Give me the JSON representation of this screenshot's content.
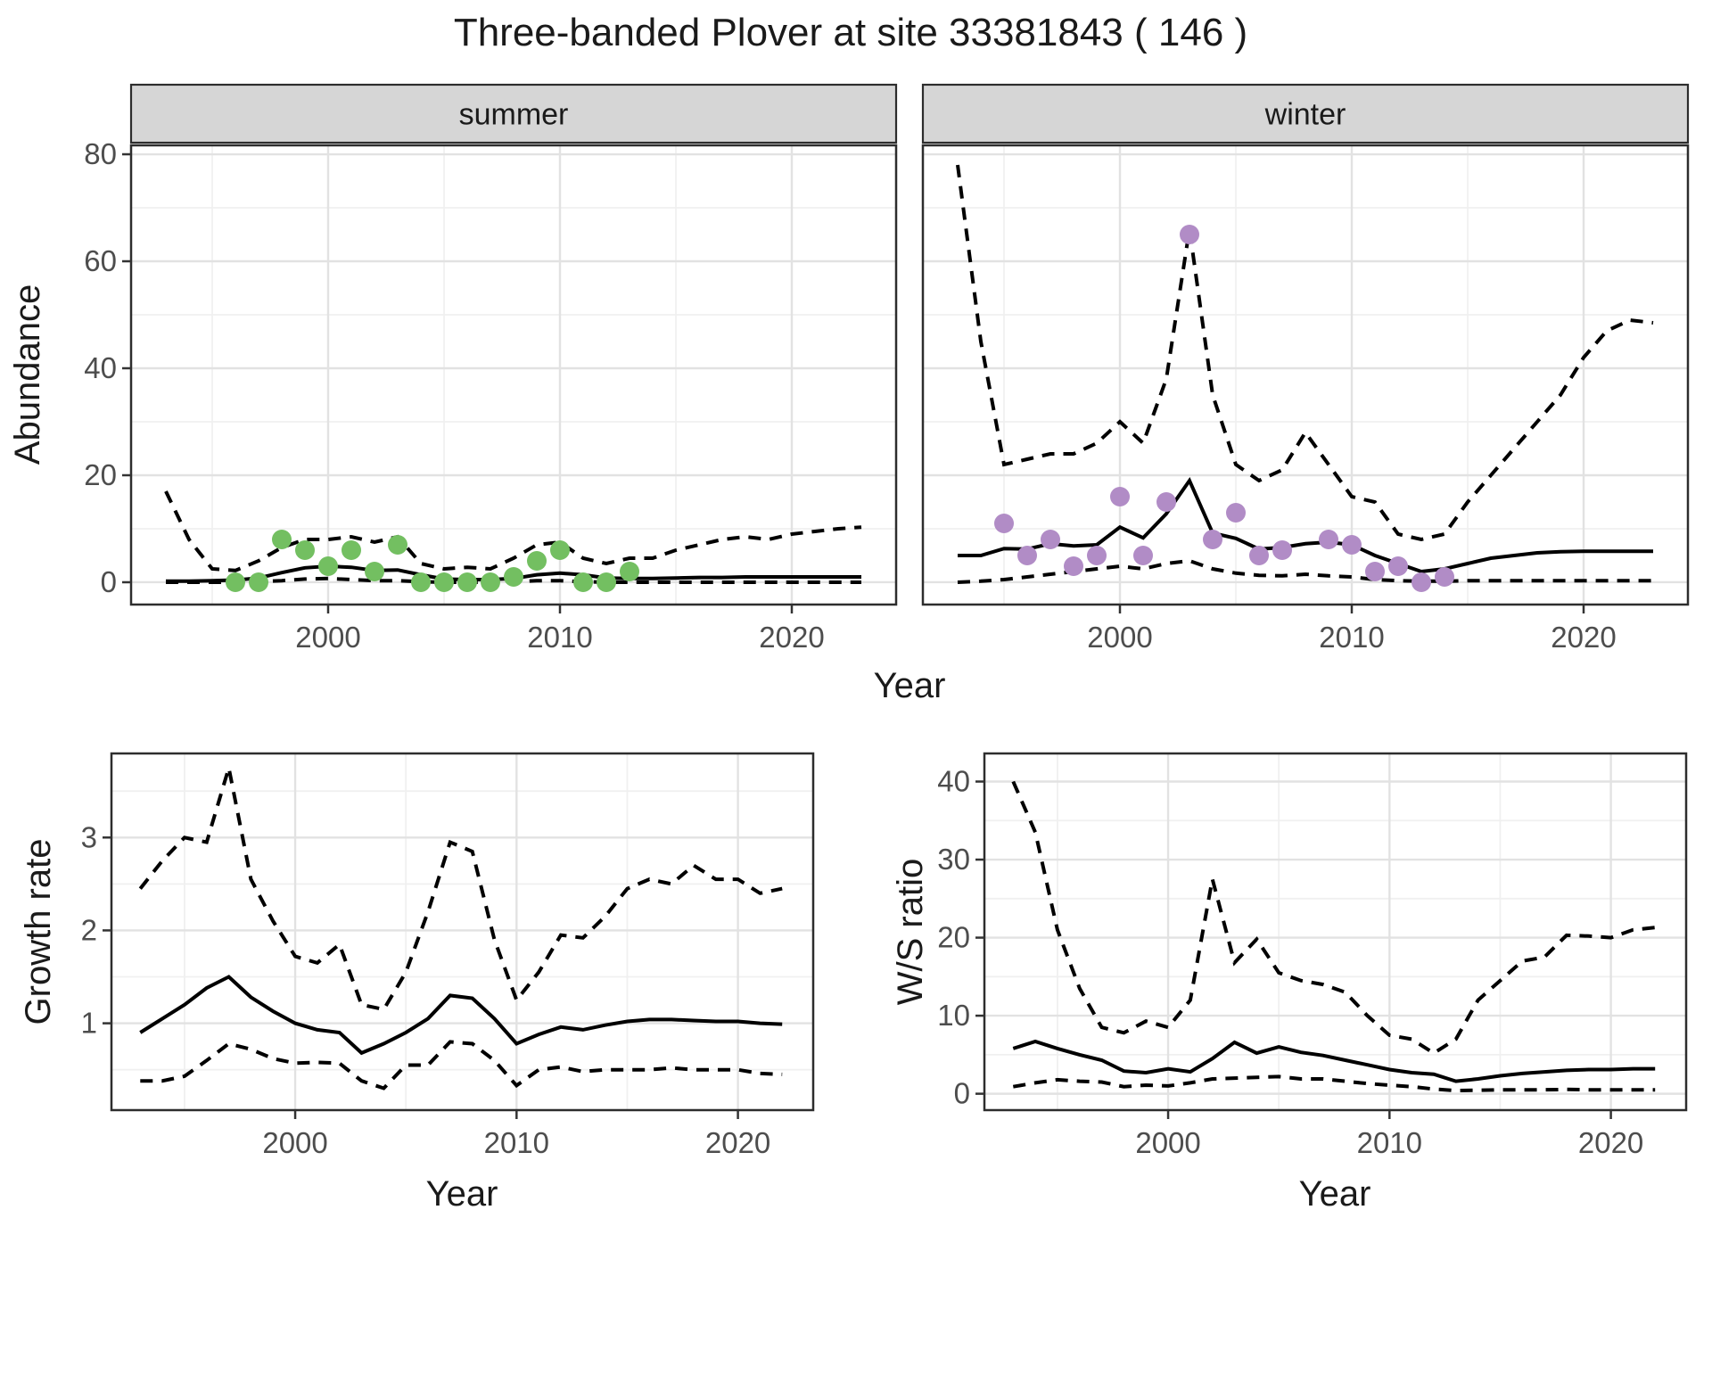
{
  "title": "Three-banded Plover at site 33381843 ( 146 )",
  "chart_data": [
    {
      "id": "abundance",
      "type": "line",
      "title": "",
      "xlabel": "Year",
      "ylabel": "Abundance",
      "facets": [
        "summer",
        "winter"
      ],
      "legend": "none",
      "grid": "on",
      "line_styles": {
        "median": "solid",
        "upper": "dashed",
        "lower": "dashed"
      },
      "x": [
        1993,
        1994,
        1995,
        1996,
        1997,
        1998,
        1999,
        2000,
        2001,
        2002,
        2003,
        2004,
        2005,
        2006,
        2007,
        2008,
        2009,
        2010,
        2011,
        2012,
        2013,
        2014,
        2015,
        2016,
        2017,
        2018,
        2019,
        2020,
        2021,
        2022,
        2023
      ],
      "xticks": [
        2000,
        2010,
        2020
      ],
      "xminor": [
        1995,
        2005,
        2015
      ],
      "xlim": [
        1991.5,
        2024.5
      ],
      "yticks": [
        0,
        20,
        40,
        60,
        80
      ],
      "yminor": [
        10,
        30,
        50,
        70
      ],
      "ylim": [
        -4.17,
        81.67
      ],
      "groups": {
        "summer": {
          "point_color": "#73bf61",
          "median": [
            0.2,
            0.2,
            0.3,
            0.4,
            0.8,
            1.8,
            2.7,
            3.0,
            2.8,
            2.2,
            2.3,
            1.4,
            0.6,
            0.5,
            0.5,
            0.7,
            1.4,
            1.7,
            1.4,
            0.8,
            0.7,
            0.7,
            0.8,
            0.9,
            0.9,
            1.0,
            1.0,
            1.0,
            1.0,
            1.0,
            1.0
          ],
          "upper": [
            17,
            8,
            2.5,
            2.2,
            4,
            6.5,
            8,
            8,
            8.5,
            7.5,
            8.5,
            3.5,
            2.5,
            2.8,
            2.5,
            4.5,
            7,
            7.5,
            4.5,
            3.5,
            4.5,
            4.5,
            6,
            7,
            8,
            8.5,
            8,
            9,
            9.5,
            10,
            10.3
          ],
          "lower": [
            0,
            0,
            0,
            0,
            0.1,
            0.3,
            0.6,
            0.7,
            0.5,
            0.3,
            0.3,
            0.1,
            0,
            0,
            0,
            0.1,
            0.3,
            0.3,
            0.1,
            0,
            0,
            0,
            0,
            0,
            0,
            0,
            0,
            0,
            0,
            0,
            0
          ],
          "obs_years": [
            1996,
            1997,
            1998,
            1999,
            2000,
            2001,
            2002,
            2003,
            2004,
            2005,
            2006,
            2007,
            2008,
            2009,
            2010,
            2011,
            2012,
            2013
          ],
          "obs_values": [
            0,
            0,
            8,
            6,
            3,
            6,
            2,
            7,
            0,
            0,
            0,
            0,
            1,
            4,
            6,
            0,
            0,
            2
          ]
        },
        "winter": {
          "point_color": "#b18cc6",
          "median": [
            5,
            5,
            6.3,
            6.2,
            7.2,
            6.8,
            7,
            10.3,
            8.3,
            12.8,
            19,
            9.2,
            8.2,
            6.2,
            6.5,
            7.2,
            7.5,
            7,
            5,
            3.5,
            2,
            2.5,
            3.5,
            4.5,
            5,
            5.5,
            5.7,
            5.8,
            5.8,
            5.8,
            5.8
          ],
          "upper": [
            78,
            45,
            22,
            23,
            24,
            24,
            26,
            30,
            26,
            38,
            66,
            35,
            22,
            19,
            21,
            28,
            22,
            16,
            15,
            9,
            8,
            9,
            15,
            20,
            25,
            30,
            35,
            42,
            47,
            49,
            48.5
          ],
          "lower": [
            0,
            0.2,
            0.5,
            1,
            1.5,
            2,
            2.5,
            3,
            2.5,
            3.5,
            4,
            2.5,
            1.7,
            1.3,
            1.2,
            1.5,
            1.2,
            1,
            0.5,
            0.3,
            0.2,
            0.2,
            0.3,
            0.3,
            0.3,
            0.3,
            0.3,
            0.3,
            0.3,
            0.3,
            0.3
          ],
          "obs_years": [
            1995,
            1996,
            1997,
            1998,
            1999,
            2000,
            2001,
            2002,
            2003,
            2004,
            2005,
            2006,
            2007,
            2009,
            2010,
            2011,
            2012,
            2013,
            2014
          ],
          "obs_values": [
            11,
            5,
            8,
            3,
            5,
            16,
            5,
            15,
            65,
            8,
            13,
            5,
            6,
            8,
            7,
            2,
            3,
            0,
            1
          ]
        }
      }
    },
    {
      "id": "growth_rate",
      "type": "line",
      "title": "",
      "xlabel": "Year",
      "ylabel": "Growth rate",
      "legend": "none",
      "grid": "on",
      "line_styles": {
        "median": "solid",
        "upper": "dashed",
        "lower": "dashed"
      },
      "x": [
        1993,
        1994,
        1995,
        1996,
        1997,
        1998,
        1999,
        2000,
        2001,
        2002,
        2003,
        2004,
        2005,
        2006,
        2007,
        2008,
        2009,
        2010,
        2011,
        2012,
        2013,
        2014,
        2015,
        2016,
        2017,
        2018,
        2019,
        2020,
        2021,
        2022
      ],
      "xticks": [
        2000,
        2010,
        2020
      ],
      "xminor": [
        1995,
        2005,
        2015
      ],
      "xlim": [
        1991.7,
        2023.4
      ],
      "yticks": [
        1,
        2,
        3
      ],
      "yminor": [
        0.5,
        1.5,
        2.5,
        3.5
      ],
      "ylim": [
        0.065,
        3.905
      ],
      "groups": {
        "all": {
          "median": [
            0.9,
            1.05,
            1.2,
            1.38,
            1.5,
            1.28,
            1.13,
            1.0,
            0.93,
            0.9,
            0.68,
            0.78,
            0.9,
            1.05,
            1.3,
            1.27,
            1.05,
            0.78,
            0.88,
            0.96,
            0.93,
            0.98,
            1.02,
            1.04,
            1.04,
            1.03,
            1.02,
            1.02,
            1.0,
            0.99
          ],
          "upper": [
            2.45,
            2.75,
            3.0,
            2.95,
            3.75,
            2.55,
            2.1,
            1.72,
            1.65,
            1.85,
            1.2,
            1.15,
            1.55,
            2.2,
            2.95,
            2.85,
            1.9,
            1.25,
            1.55,
            1.95,
            1.92,
            2.15,
            2.45,
            2.55,
            2.5,
            2.7,
            2.55,
            2.55,
            2.4,
            2.45
          ],
          "lower": [
            0.38,
            0.38,
            0.43,
            0.6,
            0.78,
            0.72,
            0.62,
            0.57,
            0.58,
            0.57,
            0.38,
            0.3,
            0.55,
            0.55,
            0.8,
            0.78,
            0.6,
            0.33,
            0.5,
            0.53,
            0.48,
            0.5,
            0.5,
            0.5,
            0.52,
            0.5,
            0.5,
            0.5,
            0.46,
            0.45
          ]
        }
      }
    },
    {
      "id": "ws_ratio",
      "type": "line",
      "title": "",
      "xlabel": "Year",
      "ylabel": "W/S ratio",
      "legend": "none",
      "grid": "on",
      "line_styles": {
        "median": "solid",
        "upper": "dashed",
        "lower": "dashed"
      },
      "x": [
        1993,
        1994,
        1995,
        1996,
        1997,
        1998,
        1999,
        2000,
        2001,
        2002,
        2003,
        2004,
        2005,
        2006,
        2007,
        2008,
        2009,
        2010,
        2011,
        2012,
        2013,
        2014,
        2015,
        2016,
        2017,
        2018,
        2019,
        2020,
        2021,
        2022
      ],
      "xticks": [
        2000,
        2010,
        2020
      ],
      "xminor": [
        1995,
        2005,
        2015
      ],
      "xlim": [
        1991.7,
        2023.4
      ],
      "yticks": [
        0,
        10,
        20,
        30,
        40
      ],
      "yminor": [
        5,
        15,
        25,
        35
      ],
      "ylim": [
        -2.1,
        43.6
      ],
      "groups": {
        "all": {
          "median": [
            5.8,
            6.7,
            5.8,
            5.0,
            4.3,
            2.9,
            2.7,
            3.2,
            2.8,
            4.5,
            6.6,
            5.2,
            6.0,
            5.3,
            4.9,
            4.3,
            3.7,
            3.1,
            2.7,
            2.5,
            1.6,
            1.9,
            2.3,
            2.6,
            2.8,
            3.0,
            3.1,
            3.1,
            3.2,
            3.2
          ],
          "upper": [
            40,
            33.5,
            21,
            13.5,
            8.5,
            7.8,
            9.3,
            8.5,
            12,
            27.5,
            16.8,
            19.8,
            15.5,
            14.5,
            14,
            13,
            10,
            7.5,
            7,
            5.2,
            7,
            12,
            14.5,
            17,
            17.5,
            20.3,
            20.2,
            20,
            21,
            21.3
          ],
          "lower": [
            0.9,
            1.4,
            1.8,
            1.6,
            1.5,
            0.9,
            1.1,
            1.0,
            1.4,
            1.9,
            2.0,
            2.1,
            2.2,
            1.9,
            1.9,
            1.6,
            1.3,
            1.1,
            0.9,
            0.6,
            0.4,
            0.45,
            0.5,
            0.5,
            0.5,
            0.55,
            0.5,
            0.5,
            0.5,
            0.5
          ]
        }
      }
    }
  ]
}
